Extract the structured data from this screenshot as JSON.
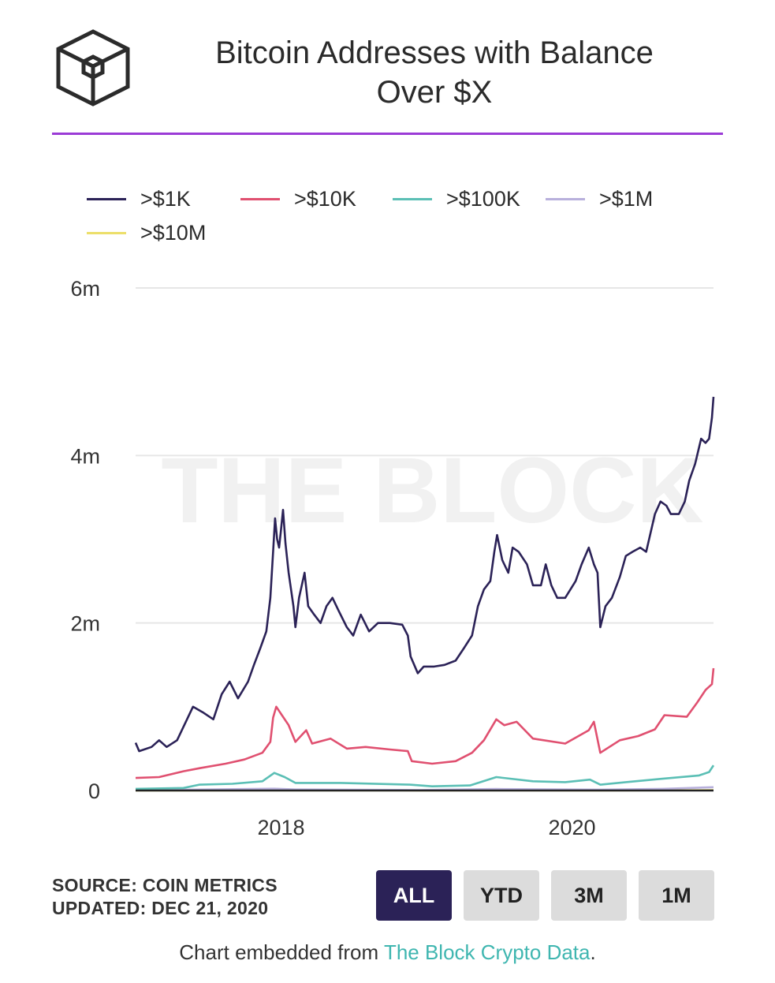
{
  "header": {
    "title_line1": "Bitcoin Addresses with Balance",
    "title_line2": "Over $X",
    "logo": "the-block-cube-logo",
    "rule_color": "#9b3bd6"
  },
  "legend": [
    {
      "label": ">$1K",
      "color": "#2b2257"
    },
    {
      "label": ">$10K",
      "color": "#e05070"
    },
    {
      "label": ">$100K",
      "color": "#5bbfb5"
    },
    {
      "label": ">$1M",
      "color": "#b8b0dc"
    },
    {
      "label": ">$10M",
      "color": "#ecdf6a"
    }
  ],
  "watermark": "THE BLOCK",
  "chart_data": {
    "type": "line",
    "y_axis": {
      "ticks": [
        0,
        2000000,
        4000000,
        6000000
      ],
      "tick_labels": [
        "0",
        "2m",
        "4m",
        "6m"
      ],
      "range": [
        0,
        6000000
      ]
    },
    "x_axis": {
      "range": [
        "2017-01-01",
        "2020-12-21"
      ],
      "ticks": [
        "2018-01-01",
        "2020-01-01"
      ],
      "tick_labels": [
        "2018",
        "2020"
      ]
    },
    "grid": true,
    "legend_position": "top-left",
    "series": [
      {
        "name": ">$1K",
        "color": "#2b2257",
        "points": [
          [
            "2017-01-01",
            570000
          ],
          [
            "2017-01-10",
            470000
          ],
          [
            "2017-02-10",
            520000
          ],
          [
            "2017-03-01",
            600000
          ],
          [
            "2017-03-20",
            520000
          ],
          [
            "2017-04-15",
            600000
          ],
          [
            "2017-05-10",
            850000
          ],
          [
            "2017-05-25",
            1000000
          ],
          [
            "2017-06-20",
            930000
          ],
          [
            "2017-07-15",
            850000
          ],
          [
            "2017-08-05",
            1150000
          ],
          [
            "2017-08-25",
            1300000
          ],
          [
            "2017-09-15",
            1100000
          ],
          [
            "2017-10-10",
            1300000
          ],
          [
            "2017-10-25",
            1500000
          ],
          [
            "2017-11-10",
            1700000
          ],
          [
            "2017-11-25",
            1900000
          ],
          [
            "2017-12-05",
            2300000
          ],
          [
            "2017-12-12",
            2850000
          ],
          [
            "2017-12-17",
            3250000
          ],
          [
            "2017-12-22",
            3000000
          ],
          [
            "2017-12-27",
            2900000
          ],
          [
            "2018-01-01",
            3120000
          ],
          [
            "2018-01-06",
            3350000
          ],
          [
            "2018-01-12",
            2950000
          ],
          [
            "2018-01-20",
            2600000
          ],
          [
            "2018-02-01",
            2200000
          ],
          [
            "2018-02-06",
            1950000
          ],
          [
            "2018-02-15",
            2300000
          ],
          [
            "2018-03-01",
            2600000
          ],
          [
            "2018-03-10",
            2200000
          ],
          [
            "2018-03-25",
            2100000
          ],
          [
            "2018-04-10",
            2000000
          ],
          [
            "2018-04-25",
            2200000
          ],
          [
            "2018-05-10",
            2300000
          ],
          [
            "2018-05-25",
            2150000
          ],
          [
            "2018-06-15",
            1950000
          ],
          [
            "2018-07-01",
            1850000
          ],
          [
            "2018-07-20",
            2100000
          ],
          [
            "2018-08-10",
            1900000
          ],
          [
            "2018-09-01",
            2000000
          ],
          [
            "2018-10-01",
            2000000
          ],
          [
            "2018-11-01",
            1980000
          ],
          [
            "2018-11-15",
            1850000
          ],
          [
            "2018-11-22",
            1600000
          ],
          [
            "2018-12-01",
            1500000
          ],
          [
            "2018-12-10",
            1400000
          ],
          [
            "2018-12-25",
            1480000
          ],
          [
            "2019-01-20",
            1480000
          ],
          [
            "2019-02-15",
            1500000
          ],
          [
            "2019-03-15",
            1550000
          ],
          [
            "2019-04-05",
            1700000
          ],
          [
            "2019-04-25",
            1850000
          ],
          [
            "2019-05-10",
            2200000
          ],
          [
            "2019-05-25",
            2400000
          ],
          [
            "2019-06-10",
            2500000
          ],
          [
            "2019-06-20",
            2850000
          ],
          [
            "2019-06-27",
            3050000
          ],
          [
            "2019-07-10",
            2750000
          ],
          [
            "2019-07-25",
            2600000
          ],
          [
            "2019-08-05",
            2900000
          ],
          [
            "2019-08-20",
            2850000
          ],
          [
            "2019-09-10",
            2700000
          ],
          [
            "2019-09-25",
            2450000
          ],
          [
            "2019-10-15",
            2450000
          ],
          [
            "2019-10-27",
            2700000
          ],
          [
            "2019-11-10",
            2450000
          ],
          [
            "2019-11-25",
            2300000
          ],
          [
            "2019-12-15",
            2300000
          ],
          [
            "2020-01-10",
            2500000
          ],
          [
            "2020-01-25",
            2700000
          ],
          [
            "2020-02-12",
            2900000
          ],
          [
            "2020-02-25",
            2700000
          ],
          [
            "2020-03-05",
            2600000
          ],
          [
            "2020-03-12",
            1950000
          ],
          [
            "2020-03-25",
            2200000
          ],
          [
            "2020-04-10",
            2300000
          ],
          [
            "2020-04-30",
            2550000
          ],
          [
            "2020-05-15",
            2800000
          ],
          [
            "2020-06-01",
            2850000
          ],
          [
            "2020-06-20",
            2900000
          ],
          [
            "2020-07-05",
            2850000
          ],
          [
            "2020-07-27",
            3300000
          ],
          [
            "2020-08-10",
            3450000
          ],
          [
            "2020-08-25",
            3400000
          ],
          [
            "2020-09-05",
            3300000
          ],
          [
            "2020-09-25",
            3300000
          ],
          [
            "2020-10-10",
            3450000
          ],
          [
            "2020-10-21",
            3700000
          ],
          [
            "2020-11-05",
            3900000
          ],
          [
            "2020-11-20",
            4200000
          ],
          [
            "2020-12-01",
            4150000
          ],
          [
            "2020-12-10",
            4200000
          ],
          [
            "2020-12-17",
            4450000
          ],
          [
            "2020-12-21",
            4700000
          ]
        ]
      },
      {
        "name": ">$10K",
        "color": "#e05070",
        "points": [
          [
            "2017-01-01",
            150000
          ],
          [
            "2017-03-01",
            160000
          ],
          [
            "2017-05-01",
            230000
          ],
          [
            "2017-06-15",
            270000
          ],
          [
            "2017-08-15",
            320000
          ],
          [
            "2017-10-01",
            370000
          ],
          [
            "2017-11-15",
            450000
          ],
          [
            "2017-12-05",
            580000
          ],
          [
            "2017-12-12",
            870000
          ],
          [
            "2017-12-20",
            1000000
          ],
          [
            "2018-01-06",
            880000
          ],
          [
            "2018-01-20",
            780000
          ],
          [
            "2018-02-06",
            580000
          ],
          [
            "2018-03-05",
            720000
          ],
          [
            "2018-03-20",
            560000
          ],
          [
            "2018-05-05",
            620000
          ],
          [
            "2018-06-15",
            500000
          ],
          [
            "2018-08-01",
            520000
          ],
          [
            "2018-10-01",
            490000
          ],
          [
            "2018-11-15",
            470000
          ],
          [
            "2018-11-25",
            350000
          ],
          [
            "2019-01-15",
            320000
          ],
          [
            "2019-03-15",
            350000
          ],
          [
            "2019-04-25",
            450000
          ],
          [
            "2019-05-25",
            600000
          ],
          [
            "2019-06-25",
            850000
          ],
          [
            "2019-07-15",
            780000
          ],
          [
            "2019-08-15",
            820000
          ],
          [
            "2019-09-25",
            620000
          ],
          [
            "2019-12-15",
            560000
          ],
          [
            "2020-02-12",
            720000
          ],
          [
            "2020-02-25",
            820000
          ],
          [
            "2020-03-12",
            450000
          ],
          [
            "2020-04-30",
            600000
          ],
          [
            "2020-06-15",
            650000
          ],
          [
            "2020-07-27",
            730000
          ],
          [
            "2020-08-20",
            900000
          ],
          [
            "2020-10-15",
            880000
          ],
          [
            "2020-11-10",
            1050000
          ],
          [
            "2020-12-01",
            1200000
          ],
          [
            "2020-12-17",
            1270000
          ],
          [
            "2020-12-21",
            1460000
          ]
        ]
      },
      {
        "name": ">$100K",
        "color": "#5bbfb5",
        "points": [
          [
            "2017-01-01",
            20000
          ],
          [
            "2017-05-01",
            30000
          ],
          [
            "2017-06-10",
            70000
          ],
          [
            "2017-09-01",
            80000
          ],
          [
            "2017-11-15",
            110000
          ],
          [
            "2017-12-15",
            210000
          ],
          [
            "2018-01-10",
            160000
          ],
          [
            "2018-02-06",
            90000
          ],
          [
            "2018-06-01",
            90000
          ],
          [
            "2018-11-20",
            70000
          ],
          [
            "2019-01-15",
            50000
          ],
          [
            "2019-04-20",
            60000
          ],
          [
            "2019-06-25",
            160000
          ],
          [
            "2019-09-25",
            110000
          ],
          [
            "2019-12-15",
            100000
          ],
          [
            "2020-02-15",
            130000
          ],
          [
            "2020-03-12",
            70000
          ],
          [
            "2020-05-15",
            100000
          ],
          [
            "2020-08-15",
            140000
          ],
          [
            "2020-11-15",
            180000
          ],
          [
            "2020-12-10",
            220000
          ],
          [
            "2020-12-21",
            300000
          ]
        ]
      },
      {
        "name": ">$1M",
        "color": "#b8b0dc",
        "points": [
          [
            "2017-01-01",
            3000
          ],
          [
            "2017-12-15",
            22000
          ],
          [
            "2018-02-06",
            12000
          ],
          [
            "2018-12-15",
            6000
          ],
          [
            "2019-06-25",
            18000
          ],
          [
            "2020-03-12",
            10000
          ],
          [
            "2020-08-15",
            20000
          ],
          [
            "2020-12-21",
            40000
          ]
        ]
      },
      {
        "name": ">$10M",
        "color": "#ecdf6a",
        "points": [
          [
            "2017-01-01",
            300
          ],
          [
            "2017-12-15",
            2000
          ],
          [
            "2018-12-15",
            800
          ],
          [
            "2019-06-25",
            2000
          ],
          [
            "2020-03-12",
            1000
          ],
          [
            "2020-12-21",
            4000
          ]
        ]
      }
    ]
  },
  "footer": {
    "source": "SOURCE: COIN METRICS",
    "updated": "UPDATED: DEC 21, 2020",
    "ranges": [
      "ALL",
      "YTD",
      "3M",
      "1M"
    ],
    "active_range": "ALL",
    "embed_prefix": "Chart embedded from ",
    "embed_link": "The Block Crypto Data",
    "embed_suffix": "."
  }
}
